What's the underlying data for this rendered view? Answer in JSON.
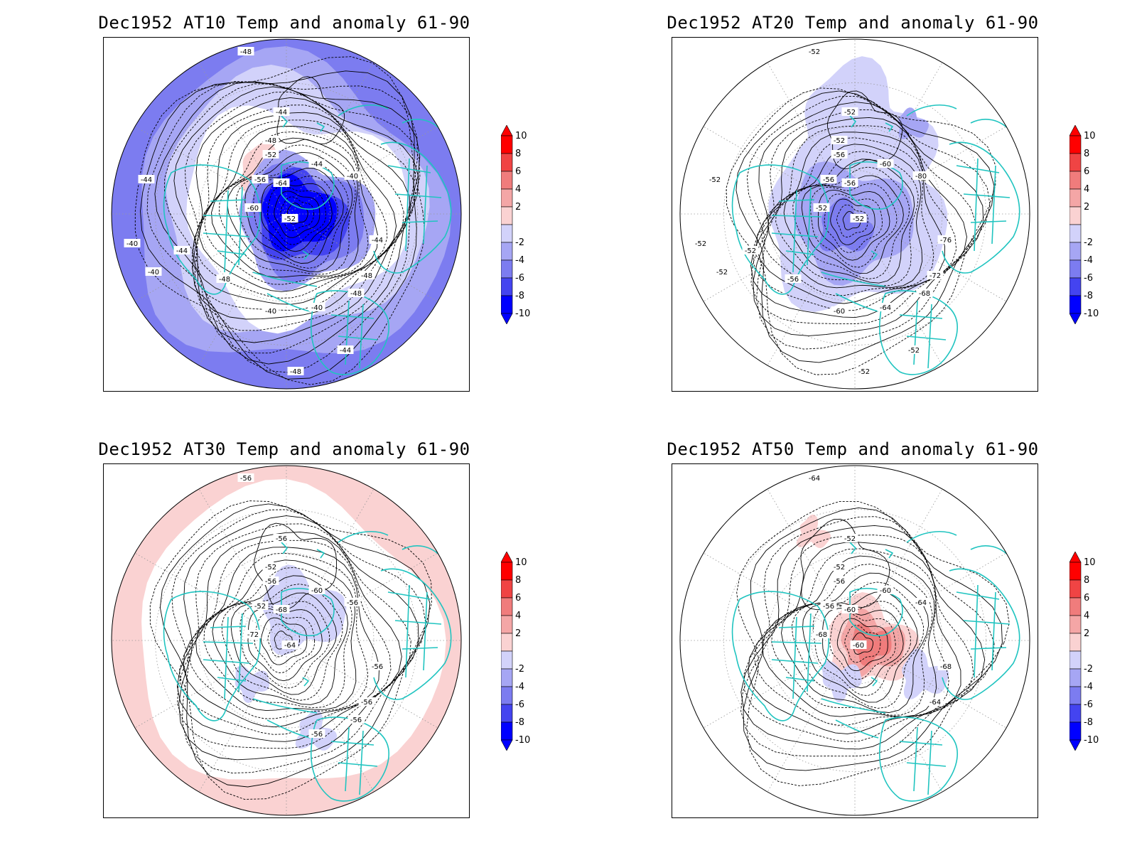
{
  "colors": {
    "coast": "#20c4c0",
    "contour": "#000000",
    "scale": [
      "#0000ff",
      "#4444f0",
      "#7c7cf0",
      "#a6a6f4",
      "#d2d2fa",
      "#ffffff",
      "#fad2d2",
      "#f4a6a6",
      "#f07c7c",
      "#f04444",
      "#ff0000"
    ]
  },
  "colorbar": {
    "labels": [
      "10",
      "8",
      "6",
      "4",
      "2",
      "-2",
      "-4",
      "-6",
      "-8",
      "-10"
    ]
  },
  "panels": [
    {
      "title": "Dec1952 AT10 Temp and anomaly 61-90",
      "contour_labels": [
        "-48",
        "-44",
        "-48",
        "-52",
        "-56",
        "-60",
        "-64",
        "-52",
        "-44",
        "-40",
        "-44",
        "-48",
        "-48",
        "-40",
        "-40",
        "-48",
        "-44",
        "-40",
        "-40",
        "-44",
        "-44",
        "-48"
      ],
      "anomaly": "core-strong-negative"
    },
    {
      "title": "Dec1952 AT20 Temp and anomaly 61-90",
      "contour_labels": [
        "-52",
        "-52",
        "-52",
        "-56",
        "-56",
        "-52",
        "-56",
        "-52",
        "-60",
        "-80",
        "-76",
        "-72",
        "-68",
        "-64",
        "-60",
        "-56",
        "-52",
        "-52",
        "-52",
        "-52",
        "-52",
        "-52"
      ],
      "anomaly": "core-moderate-negative"
    },
    {
      "title": "Dec1952 AT30 Temp and anomaly 61-90",
      "contour_labels": [
        "-56",
        "-56",
        "-52",
        "-56",
        "-52",
        "-72",
        "-68",
        "-64",
        "-60",
        "-56",
        "-56",
        "-56",
        "-56",
        "-56"
      ],
      "anomaly": "ring-positive"
    },
    {
      "title": "Dec1952 AT50 Temp and anomaly 61-90",
      "contour_labels": [
        "-64",
        "-52",
        "-52",
        "-56",
        "-56",
        "-68",
        "-60",
        "-60",
        "-60",
        "-64",
        "-68",
        "-64"
      ],
      "anomaly": "core-positive"
    }
  ]
}
